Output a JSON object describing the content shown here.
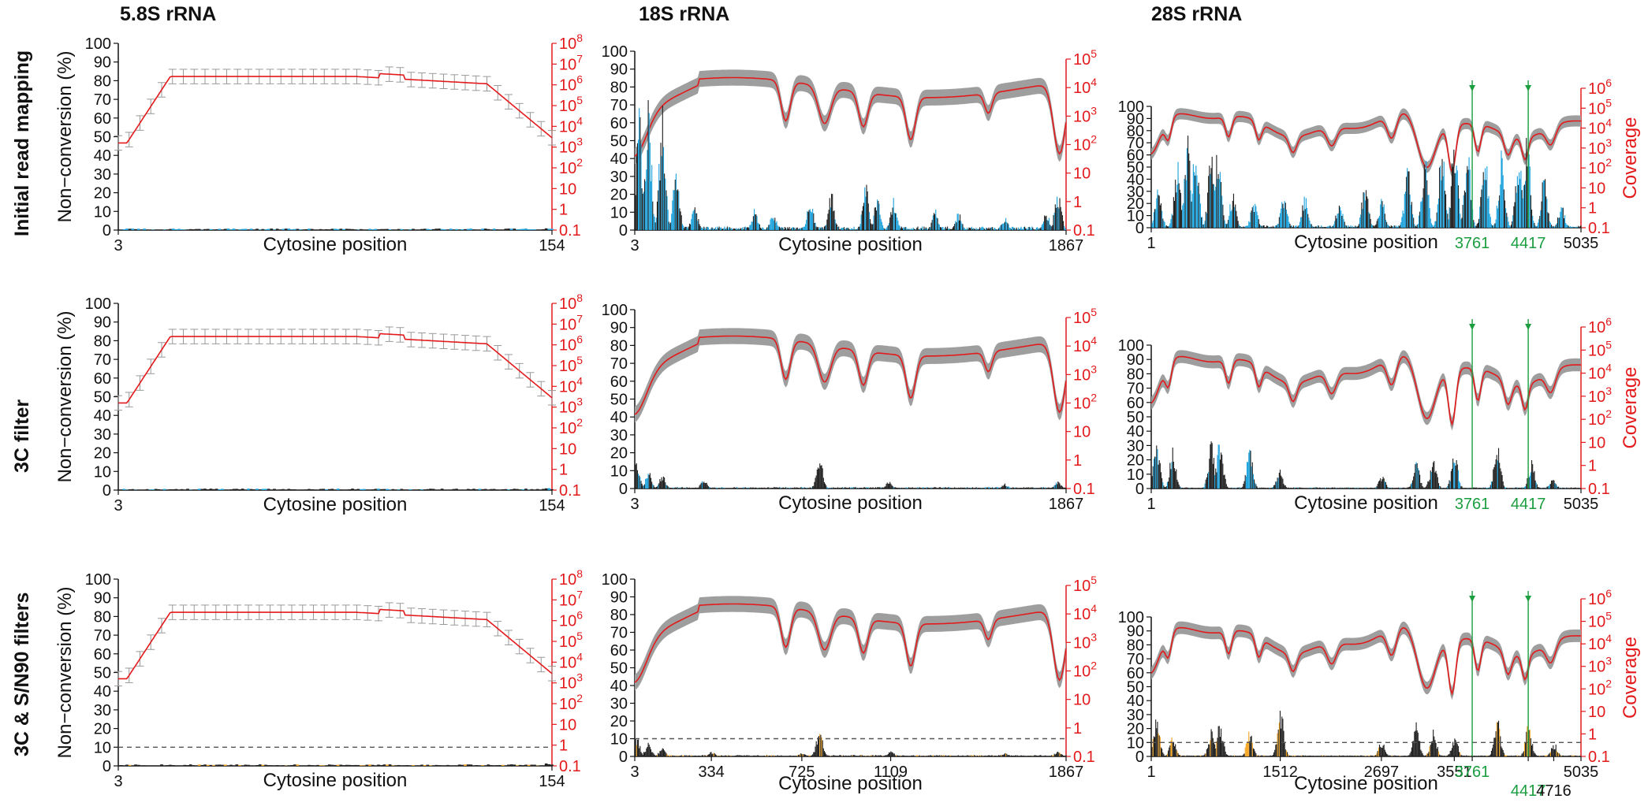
{
  "column_titles": [
    "5.8S rRNA",
    "18S rRNA",
    "28S rRNA"
  ],
  "row_titles": [
    "Initial read mapping",
    "3C filter",
    "3C & S/N90 filters"
  ],
  "colors": {
    "coverage_line": "#e31a1c",
    "coverage_band": "#9e9e9e",
    "nonconversion_all": "#222222",
    "nonconversion_filtered": "#1ea3dc",
    "nonconversion_sn90": "#f5a623",
    "highlight_position": "#1a9e3f",
    "threshold_line": "#555555"
  },
  "chart_data": [
    {
      "id": "r1c1",
      "type": "line",
      "row": 0,
      "col": 0,
      "rRNA": "5.8S",
      "xlabel": "Cytosine position",
      "ylabel": "Non−conversion (%)",
      "y2label": "",
      "x_ticks": [
        3,
        154
      ],
      "xlim": [
        3,
        154
      ],
      "ylim": [
        0,
        100
      ],
      "y_ticks": [
        0,
        10,
        20,
        30,
        40,
        50,
        60,
        70,
        80,
        90,
        100
      ],
      "y2_scale": "log",
      "y2lim": [
        0.1,
        100000000
      ],
      "y2_ticks": [
        "0.1",
        "1",
        "10",
        "10^2",
        "10^3",
        "10^4",
        "10^5",
        "10^6",
        "10^7",
        "10^8"
      ],
      "coverage_shape": "5.8S",
      "coverage_errorbars": true,
      "nonconversion": {
        "peaks": [
          [
            95,
            0.8
          ],
          [
            110,
            0.8
          ],
          [
            125,
            0.8
          ],
          [
            140,
            1
          ],
          [
            152,
            1.5
          ]
        ]
      },
      "threshold": null,
      "highlights": []
    },
    {
      "id": "r1c2",
      "type": "line",
      "row": 0,
      "col": 1,
      "rRNA": "18S",
      "xlabel": "Cytosine position",
      "ylabel": "",
      "y2label": "",
      "x_ticks": [
        3,
        1867
      ],
      "xlim": [
        3,
        1867
      ],
      "ylim": [
        0,
        100
      ],
      "y_ticks": [
        0,
        10,
        20,
        30,
        40,
        50,
        60,
        70,
        80,
        90,
        100
      ],
      "y2_scale": "log",
      "y2lim": [
        0.1,
        100000
      ],
      "y2_ticks": [
        "0.1",
        "1",
        "10",
        "10^2",
        "10^3",
        "10^4",
        "10^5"
      ],
      "coverage_shape": "18S",
      "coverage_errorbars": false,
      "nonconversion": {
        "level": "high",
        "peaks": [
          [
            20,
            70
          ],
          [
            60,
            75
          ],
          [
            120,
            72
          ],
          [
            180,
            40
          ],
          [
            260,
            15
          ],
          [
            520,
            12
          ],
          [
            600,
            10
          ],
          [
            760,
            18
          ],
          [
            850,
            22
          ],
          [
            1000,
            30
          ],
          [
            1050,
            20
          ],
          [
            1120,
            18
          ],
          [
            1300,
            12
          ],
          [
            1400,
            10
          ],
          [
            1600,
            8
          ],
          [
            1780,
            10
          ],
          [
            1830,
            25
          ]
        ]
      },
      "threshold": null,
      "highlights": []
    },
    {
      "id": "r1c3",
      "type": "line",
      "row": 0,
      "col": 2,
      "rRNA": "28S",
      "xlabel": "Cytosine position",
      "ylabel": "",
      "y2label": "Coverage",
      "x_ticks": [
        1,
        5035
      ],
      "xlim": [
        1,
        5035
      ],
      "ylim": [
        0,
        100
      ],
      "y_ticks": [
        0,
        10,
        20,
        30,
        40,
        50,
        60,
        70,
        80,
        90,
        100
      ],
      "y2_scale": "log",
      "y2lim": [
        0.1,
        1000000
      ],
      "y2_ticks": [
        "0.1",
        "1",
        "10",
        "10^2",
        "10^3",
        "10^4",
        "10^5",
        "10^6"
      ],
      "coverage_shape": "28S",
      "coverage_errorbars": false,
      "nonconversion": {
        "level": "high",
        "peaks": [
          [
            80,
            40
          ],
          [
            300,
            60
          ],
          [
            420,
            80
          ],
          [
            520,
            78
          ],
          [
            700,
            75
          ],
          [
            780,
            70
          ],
          [
            950,
            30
          ],
          [
            1200,
            25
          ],
          [
            1550,
            30
          ],
          [
            1800,
            28
          ],
          [
            2200,
            22
          ],
          [
            2500,
            40
          ],
          [
            2700,
            25
          ],
          [
            3000,
            55
          ],
          [
            3200,
            65
          ],
          [
            3400,
            70
          ],
          [
            3550,
            80
          ],
          [
            3700,
            70
          ],
          [
            3900,
            72
          ],
          [
            4100,
            65
          ],
          [
            4300,
            70
          ],
          [
            4400,
            80
          ],
          [
            4600,
            45
          ],
          [
            4800,
            20
          ]
        ]
      },
      "threshold": null,
      "highlights": [
        3761,
        4417
      ]
    },
    {
      "id": "r2c1",
      "type": "line",
      "row": 1,
      "col": 0,
      "rRNA": "5.8S",
      "xlabel": "Cytosine position",
      "ylabel": "Non−conversion (%)",
      "y2label": "",
      "x_ticks": [
        3,
        154
      ],
      "xlim": [
        3,
        154
      ],
      "ylim": [
        0,
        100
      ],
      "y_ticks": [
        0,
        10,
        20,
        30,
        40,
        50,
        60,
        70,
        80,
        90,
        100
      ],
      "y2_scale": "log",
      "y2lim": [
        0.1,
        100000000
      ],
      "y2_ticks": [
        "0.1",
        "1",
        "10",
        "10^2",
        "10^3",
        "10^4",
        "10^5",
        "10^6",
        "10^7",
        "10^8"
      ],
      "coverage_shape": "5.8S",
      "coverage_errorbars": true,
      "nonconversion": {
        "peaks": [
          [
            95,
            0.8
          ],
          [
            110,
            0.8
          ],
          [
            125,
            0.8
          ],
          [
            140,
            1
          ],
          [
            152,
            1.5
          ]
        ]
      },
      "threshold": null,
      "highlights": []
    },
    {
      "id": "r2c2",
      "type": "line",
      "row": 1,
      "col": 1,
      "rRNA": "18S",
      "xlabel": "Cytosine position",
      "ylabel": "",
      "y2label": "",
      "x_ticks": [
        3,
        1867
      ],
      "xlim": [
        3,
        1867
      ],
      "ylim": [
        0,
        100
      ],
      "y_ticks": [
        0,
        10,
        20,
        30,
        40,
        50,
        60,
        70,
        80,
        90,
        100
      ],
      "y2_scale": "log",
      "y2lim": [
        0.1,
        100000
      ],
      "y2_ticks": [
        "0.1",
        "1",
        "10",
        "10^2",
        "10^3",
        "10^4",
        "10^5"
      ],
      "coverage_shape": "18S",
      "coverage_errorbars": false,
      "nonconversion": {
        "level": "low",
        "peaks": [
          [
            10,
            15
          ],
          [
            60,
            10
          ],
          [
            120,
            8
          ],
          [
            300,
            5
          ],
          [
            800,
            18
          ],
          [
            1100,
            4
          ],
          [
            1600,
            3
          ],
          [
            1830,
            4
          ]
        ]
      },
      "threshold": null,
      "highlights": []
    },
    {
      "id": "r2c3",
      "type": "line",
      "row": 1,
      "col": 2,
      "rRNA": "28S",
      "xlabel": "Cytosine position",
      "ylabel": "",
      "y2label": "Coverage",
      "x_ticks": [
        1,
        5035
      ],
      "xlim": [
        1,
        5035
      ],
      "ylim": [
        0,
        100
      ],
      "y_ticks": [
        0,
        10,
        20,
        30,
        40,
        50,
        60,
        70,
        80,
        90,
        100
      ],
      "y2_scale": "log",
      "y2lim": [
        0.1,
        1000000
      ],
      "y2_ticks": [
        "0.1",
        "1",
        "10",
        "10^2",
        "10^3",
        "10^4",
        "10^5",
        "10^6"
      ],
      "coverage_shape": "28S",
      "coverage_errorbars": false,
      "nonconversion": {
        "level": "low",
        "peaks": [
          [
            60,
            35
          ],
          [
            250,
            30
          ],
          [
            700,
            35
          ],
          [
            800,
            40
          ],
          [
            1150,
            30
          ],
          [
            1500,
            15
          ],
          [
            2700,
            10
          ],
          [
            3100,
            20
          ],
          [
            3300,
            25
          ],
          [
            3550,
            28
          ],
          [
            4050,
            35
          ],
          [
            4450,
            20
          ],
          [
            4700,
            8
          ]
        ]
      },
      "threshold": null,
      "highlights": [
        3761,
        4417
      ]
    },
    {
      "id": "r3c1",
      "type": "line",
      "row": 2,
      "col": 0,
      "rRNA": "5.8S",
      "xlabel": "Cytosine position",
      "ylabel": "Non−conversion (%)",
      "y2label": "",
      "x_ticks": [
        3,
        154
      ],
      "xlim": [
        3,
        154
      ],
      "ylim": [
        0,
        100
      ],
      "y_ticks": [
        0,
        10,
        20,
        30,
        40,
        50,
        60,
        70,
        80,
        90,
        100
      ],
      "y2_scale": "log",
      "y2lim": [
        0.1,
        100000000
      ],
      "y2_ticks": [
        "0.1",
        "1",
        "10",
        "10^2",
        "10^3",
        "10^4",
        "10^5",
        "10^6",
        "10^7",
        "10^8"
      ],
      "coverage_shape": "5.8S",
      "coverage_errorbars": true,
      "nonconversion": {
        "peaks": [
          [
            95,
            0.8
          ],
          [
            110,
            0.8
          ],
          [
            125,
            0.8
          ],
          [
            140,
            1
          ],
          [
            152,
            1.5
          ]
        ]
      },
      "threshold": 10,
      "highlights": []
    },
    {
      "id": "r3c2",
      "type": "line",
      "row": 2,
      "col": 1,
      "rRNA": "18S",
      "xlabel": "Cytosine position",
      "ylabel": "",
      "y2label": "",
      "x_ticks": [
        3,
        334,
        725,
        1109,
        1867
      ],
      "xlim": [
        3,
        1867
      ],
      "ylim": [
        0,
        100
      ],
      "y_ticks": [
        0,
        10,
        20,
        30,
        40,
        50,
        60,
        70,
        80,
        90,
        100
      ],
      "y2_scale": "log",
      "y2lim": [
        0.1,
        100000
      ],
      "y2_ticks": [
        "0.1",
        "1",
        "10",
        "10^2",
        "10^3",
        "10^4",
        "10^5"
      ],
      "coverage_shape": "18S",
      "coverage_errorbars": false,
      "nonconversion": {
        "level": "low",
        "peaks": [
          [
            10,
            12
          ],
          [
            60,
            8
          ],
          [
            120,
            5
          ],
          [
            334,
            3
          ],
          [
            725,
            2
          ],
          [
            800,
            18
          ],
          [
            1109,
            3
          ],
          [
            1600,
            2
          ],
          [
            1830,
            3
          ]
        ]
      },
      "threshold": 10,
      "highlights": []
    },
    {
      "id": "r3c3",
      "type": "line",
      "row": 2,
      "col": 2,
      "rRNA": "28S",
      "xlabel": "Cytosine position",
      "ylabel": "",
      "y2label": "Coverage",
      "x_ticks": [
        1,
        1512,
        2697,
        3551,
        3761,
        4417,
        4716,
        5035
      ],
      "xlim": [
        1,
        5035
      ],
      "ylim": [
        0,
        100
      ],
      "y_ticks": [
        0,
        10,
        20,
        30,
        40,
        50,
        60,
        70,
        80,
        90,
        100
      ],
      "y2_scale": "log",
      "y2lim": [
        0.1,
        1000000
      ],
      "y2_ticks": [
        "0.1",
        "1",
        "10",
        "10^2",
        "10^3",
        "10^4",
        "10^5",
        "10^6"
      ],
      "coverage_shape": "28S",
      "coverage_errorbars": false,
      "nonconversion": {
        "level": "low",
        "peaks": [
          [
            60,
            30
          ],
          [
            250,
            15
          ],
          [
            700,
            20
          ],
          [
            800,
            25
          ],
          [
            1150,
            20
          ],
          [
            1512,
            35
          ],
          [
            2697,
            12
          ],
          [
            3100,
            25
          ],
          [
            3300,
            20
          ],
          [
            3551,
            15
          ],
          [
            4050,
            30
          ],
          [
            4417,
            25
          ],
          [
            4716,
            10
          ]
        ]
      },
      "threshold": 10,
      "highlights": [
        3761,
        4417
      ]
    }
  ]
}
